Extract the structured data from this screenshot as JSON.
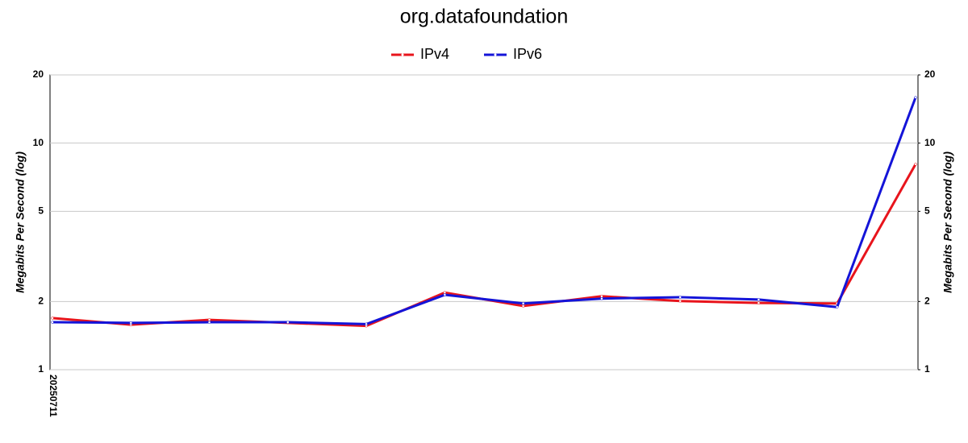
{
  "chart_data": {
    "type": "line",
    "title": "org.datafoundation",
    "y_label": "Megabits Per Second (log)",
    "y2_label": "Megabits Per Second (log)",
    "categories": [
      "20250711",
      null,
      null,
      null,
      null,
      null,
      null,
      null,
      null,
      null,
      null,
      null
    ],
    "series": [
      {
        "name": "IPv4",
        "color": "#e8141c",
        "values": [
          1.69,
          1.58,
          1.66,
          1.61,
          1.56,
          2.19,
          1.91,
          2.11,
          2.01,
          1.97,
          1.96,
          8.07
        ]
      },
      {
        "name": "IPv6",
        "color": "#1414d8",
        "values": [
          1.62,
          1.61,
          1.62,
          1.62,
          1.59,
          2.14,
          1.96,
          2.06,
          2.09,
          2.04,
          1.89,
          15.9
        ]
      }
    ],
    "ylim": [
      1,
      20
    ],
    "yticks": [
      1,
      2,
      5,
      10,
      20
    ],
    "y2lim": [
      1,
      20
    ],
    "y2ticks": [
      1,
      2,
      5,
      10,
      20
    ],
    "log_scale": true,
    "grid": true,
    "legend": "top"
  }
}
